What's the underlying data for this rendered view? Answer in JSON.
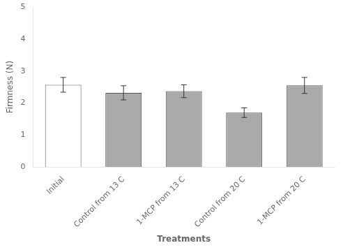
{
  "chart_data": {
    "type": "bar",
    "categories": [
      "Initial",
      "Control from 13 C",
      "1-MCP from 13 C",
      "Control from 20 C",
      "1-MCP from 20 C"
    ],
    "values": [
      2.57,
      2.32,
      2.37,
      1.7,
      2.55
    ],
    "errors": [
      0.23,
      0.22,
      0.2,
      0.15,
      0.25
    ],
    "colors": [
      "#ffffff",
      "#aaaaaa",
      "#aaaaaa",
      "#aaaaaa",
      "#aaaaaa"
    ],
    "xlabel": "Treatments",
    "ylabel": "Firmness (N)",
    "ylim": [
      0,
      5
    ],
    "yticks": [
      0,
      1,
      2,
      3,
      4,
      5
    ],
    "grid": false
  }
}
